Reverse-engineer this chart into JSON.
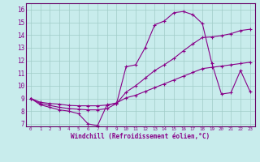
{
  "xlabel": "Windchill (Refroidissement éolien,°C)",
  "background_color": "#c8ecec",
  "grid_color": "#a0ccc8",
  "line_color": "#880088",
  "spine_color": "#660066",
  "xlim": [
    -0.5,
    23.5
  ],
  "ylim": [
    6.8,
    16.5
  ],
  "xticks": [
    0,
    1,
    2,
    3,
    4,
    5,
    6,
    7,
    8,
    9,
    10,
    11,
    12,
    13,
    14,
    15,
    16,
    17,
    18,
    19,
    20,
    21,
    22,
    23
  ],
  "yticks": [
    7,
    8,
    9,
    10,
    11,
    12,
    13,
    14,
    15,
    16
  ],
  "line1_x": [
    0,
    1,
    2,
    3,
    4,
    5,
    6,
    7,
    8,
    9,
    10,
    11,
    12,
    13,
    14,
    15,
    16,
    17,
    18,
    19,
    20,
    21,
    22,
    23
  ],
  "line1_y": [
    9.0,
    8.5,
    8.3,
    8.1,
    8.0,
    7.8,
    7.0,
    6.85,
    8.5,
    8.6,
    11.5,
    11.65,
    13.0,
    14.8,
    15.1,
    15.75,
    15.85,
    15.6,
    14.9,
    11.75,
    9.35,
    9.45,
    11.2,
    9.55
  ],
  "line2_x": [
    0,
    1,
    2,
    3,
    4,
    5,
    6,
    7,
    8,
    9,
    10,
    11,
    12,
    13,
    14,
    15,
    16,
    17,
    18,
    19,
    20,
    21,
    22,
    23
  ],
  "line2_y": [
    9.0,
    8.6,
    8.45,
    8.3,
    8.2,
    8.15,
    8.1,
    8.1,
    8.2,
    8.6,
    9.5,
    10.0,
    10.6,
    11.2,
    11.65,
    12.15,
    12.75,
    13.3,
    13.8,
    13.85,
    13.95,
    14.1,
    14.35,
    14.45
  ],
  "line3_x": [
    0,
    1,
    2,
    3,
    4,
    5,
    6,
    7,
    8,
    9,
    10,
    11,
    12,
    13,
    14,
    15,
    16,
    17,
    18,
    19,
    20,
    21,
    22,
    23
  ],
  "line3_y": [
    9.0,
    8.7,
    8.6,
    8.55,
    8.45,
    8.42,
    8.42,
    8.42,
    8.48,
    8.65,
    9.05,
    9.25,
    9.55,
    9.85,
    10.15,
    10.45,
    10.75,
    11.05,
    11.35,
    11.45,
    11.55,
    11.65,
    11.75,
    11.85
  ]
}
